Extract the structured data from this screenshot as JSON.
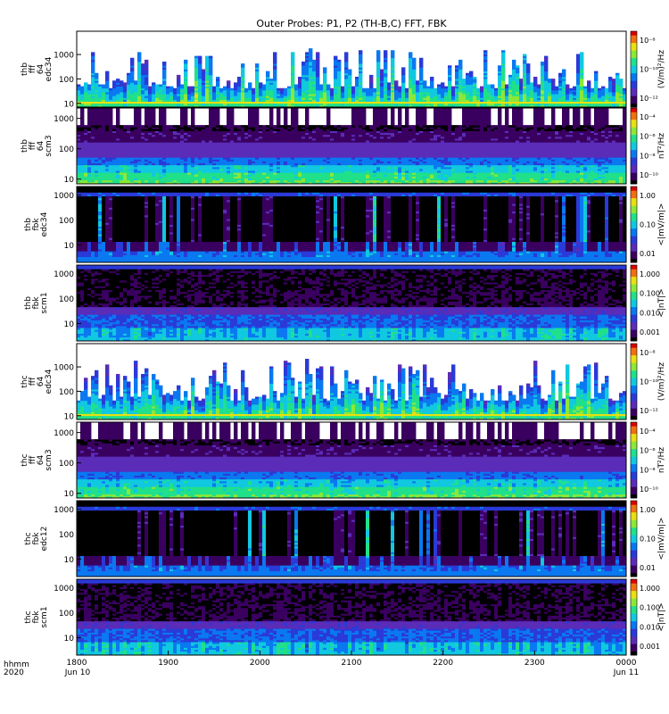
{
  "title": "Outer Probes: P1, P2 (TH-B,C) FFT, FBK",
  "time_axis": {
    "ticks": [
      "1800",
      "1900",
      "2000",
      "2100",
      "2200",
      "2300",
      "0000"
    ],
    "start_date": "Jun 10",
    "end_date": "Jun 11",
    "corner_label_1": "hhmm",
    "corner_label_2": "2020"
  },
  "colormap": [
    "#000000",
    "#3a0060",
    "#5a2cb8",
    "#2a3ad8",
    "#0a78f0",
    "#10c8e0",
    "#20e08a",
    "#8ce838",
    "#e8e010",
    "#f07010",
    "#d80000"
  ],
  "chart_data": [
    {
      "type": "heatmap",
      "ylabel": [
        "thb",
        "fff",
        "64",
        "edc34"
      ],
      "yticks": [
        "10",
        "100",
        "1000"
      ],
      "ylog": true,
      "ylim": [
        7,
        9000
      ],
      "colorbar": {
        "label": "(V/m)²/Hz",
        "ticks": [
          "10⁻¹²",
          "10⁻¹⁰",
          "10⁻⁸"
        ]
      },
      "mode": "e-bursty"
    },
    {
      "type": "heatmap",
      "ylabel": [
        "thb",
        "fff",
        "64",
        "scm3"
      ],
      "yticks": [
        "10",
        "100",
        "1000"
      ],
      "ylog": true,
      "ylim": [
        7,
        2200
      ],
      "colorbar": {
        "label": "nT²/Hz",
        "ticks": [
          "10⁻¹⁰",
          "10⁻⁸",
          "10⁻⁶",
          "10⁻⁴"
        ]
      },
      "mode": "b-bands"
    },
    {
      "type": "heatmap",
      "ylabel": [
        "thb",
        "fbk",
        "edc34"
      ],
      "yticks": [
        "10",
        "100",
        "1000"
      ],
      "ylog": true,
      "ylim": [
        2,
        2200
      ],
      "colorbar": {
        "label": "<|mV/m|>",
        "ticks": [
          "0.01",
          "0.10",
          "1.00"
        ]
      },
      "mode": "fbk-e"
    },
    {
      "type": "heatmap",
      "ylabel": [
        "thb",
        "fbk",
        "scm1"
      ],
      "yticks": [
        "10",
        "100",
        "1000"
      ],
      "ylog": true,
      "ylim": [
        2,
        2200
      ],
      "colorbar": {
        "label": "<|nT|>",
        "ticks": [
          "0.001",
          "0.010",
          "0.100",
          "1.000"
        ]
      },
      "mode": "fbk-b"
    },
    {
      "type": "heatmap",
      "ylabel": [
        "thc",
        "fff",
        "64",
        "edc34"
      ],
      "yticks": [
        "10",
        "100",
        "1000"
      ],
      "ylog": true,
      "ylim": [
        7,
        9000
      ],
      "colorbar": {
        "label": "(V/m)²/Hz",
        "ticks": [
          "10⁻¹²",
          "10⁻¹⁰",
          "10⁻⁸"
        ]
      },
      "mode": "e-bursty"
    },
    {
      "type": "heatmap",
      "ylabel": [
        "thc",
        "fff",
        "64",
        "scm3"
      ],
      "yticks": [
        "10",
        "100",
        "1000"
      ],
      "ylog": true,
      "ylim": [
        7,
        2200
      ],
      "colorbar": {
        "label": "nT²/Hz",
        "ticks": [
          "10⁻¹⁰",
          "10⁻⁸",
          "10⁻⁶",
          "10⁻⁴"
        ]
      },
      "mode": "b-bands"
    },
    {
      "type": "heatmap",
      "ylabel": [
        "thc",
        "fbk",
        "edc12"
      ],
      "yticks": [
        "10",
        "100",
        "1000"
      ],
      "ylog": true,
      "ylim": [
        2,
        2200
      ],
      "colorbar": {
        "label": "<|mV/m|>",
        "ticks": [
          "0.01",
          "0.10",
          "1.00"
        ]
      },
      "mode": "fbk-e"
    },
    {
      "type": "heatmap",
      "ylabel": [
        "thc",
        "fbk",
        "scm1"
      ],
      "yticks": [
        "10",
        "100",
        "1000"
      ],
      "ylog": true,
      "ylim": [
        2,
        2200
      ],
      "colorbar": {
        "label": "<|nT|>",
        "ticks": [
          "0.001",
          "0.010",
          "0.100",
          "1.000"
        ]
      },
      "mode": "fbk-b"
    }
  ]
}
